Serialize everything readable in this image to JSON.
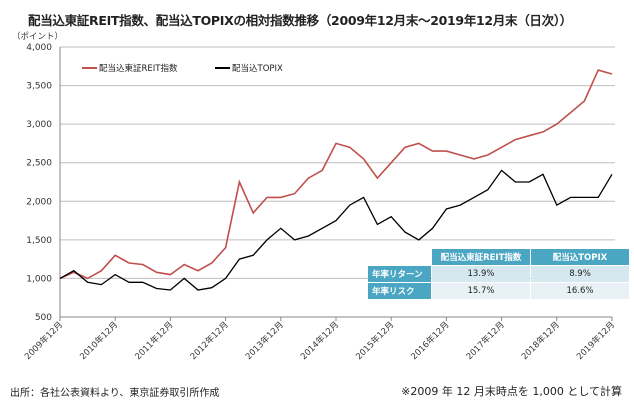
{
  "chart_data": {
    "type": "line",
    "title": "配当込東証REIT指数、配当込TOPIXの相対指数推移（2009年12月末～2019年12月末（日次））",
    "ylabel": "（ポイント）",
    "ylim": [
      500,
      4000
    ],
    "yticks": [
      "500",
      "1,000",
      "1,500",
      "2,000",
      "2,500",
      "3,000",
      "3,500",
      "4,000"
    ],
    "xticks": [
      "2009年12月",
      "2010年12月",
      "2011年12月",
      "2012年12月",
      "2013年12月",
      "2014年12月",
      "2015年12月",
      "2016年12月",
      "2017年12月",
      "2018年12月",
      "2019年12月"
    ],
    "x": [
      "2009-12",
      "2010-03",
      "2010-06",
      "2010-09",
      "2010-12",
      "2011-03",
      "2011-06",
      "2011-09",
      "2011-12",
      "2012-03",
      "2012-06",
      "2012-09",
      "2012-12",
      "2013-03",
      "2013-06",
      "2013-09",
      "2013-12",
      "2014-03",
      "2014-06",
      "2014-09",
      "2014-12",
      "2015-03",
      "2015-06",
      "2015-09",
      "2015-12",
      "2016-03",
      "2016-06",
      "2016-09",
      "2016-12",
      "2017-03",
      "2017-06",
      "2017-09",
      "2017-12",
      "2018-03",
      "2018-06",
      "2018-09",
      "2018-12",
      "2019-03",
      "2019-06",
      "2019-09",
      "2019-12"
    ],
    "grid": true,
    "legend": "top-left",
    "series": [
      {
        "name": "配当込東証REIT指数",
        "color": "#c0504d",
        "values": [
          1000,
          1080,
          1000,
          1100,
          1300,
          1200,
          1180,
          1080,
          1050,
          1180,
          1100,
          1200,
          1400,
          2250,
          1850,
          2050,
          2050,
          2100,
          2300,
          2400,
          2750,
          2700,
          2550,
          2300,
          2500,
          2700,
          2750,
          2650,
          2650,
          2600,
          2550,
          2600,
          2700,
          2800,
          2850,
          2900,
          3000,
          3150,
          3300,
          3700,
          3650
        ]
      },
      {
        "name": "配当込TOPIX",
        "color": "#000000",
        "values": [
          1000,
          1100,
          950,
          920,
          1050,
          950,
          950,
          870,
          850,
          1000,
          850,
          880,
          1000,
          1250,
          1300,
          1500,
          1650,
          1500,
          1550,
          1650,
          1750,
          1950,
          2050,
          1700,
          1800,
          1600,
          1500,
          1650,
          1900,
          1950,
          2050,
          2150,
          2400,
          2250,
          2250,
          2350,
          1950,
          2050,
          2050,
          2050,
          2350
        ]
      }
    ]
  },
  "table": {
    "headers": [
      "配当込東証REIT指数",
      "配当込TOPIX"
    ],
    "rows": [
      {
        "label": "年率リターン",
        "reit": "13.9%",
        "topix": "8.9%"
      },
      {
        "label": "年率リスク",
        "reit": "15.7%",
        "topix": "16.6%"
      }
    ],
    "header_color": "#4aa6c2"
  },
  "source": "出所：各社公表資料より、東京証券取引所作成",
  "note": "※2009 年 12 月末時点を 1,000 として計算"
}
